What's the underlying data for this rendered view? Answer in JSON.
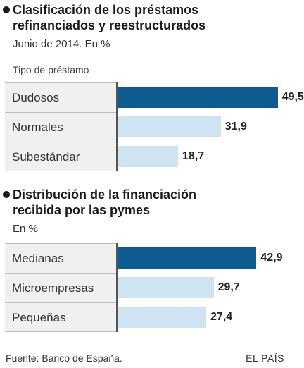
{
  "colors": {
    "highlight": "#0d5b91",
    "normal": "#cfe4f2"
  },
  "chart_data": [
    {
      "type": "bar",
      "title": "Clasificación de los préstamos refinanciados y reestructurados",
      "subtitle": "Junio de 2014. En %",
      "category_header": "Tipo de préstamo",
      "categories": [
        "Dudosos",
        "Normales",
        "Subestándar"
      ],
      "values": [
        49.5,
        31.9,
        18.7
      ],
      "value_labels": [
        "49,5",
        "31,9",
        "18,7"
      ],
      "highlight": [
        true,
        false,
        false
      ],
      "xlim": [
        0,
        50
      ]
    },
    {
      "type": "bar",
      "title": "Distribución de la financiación recibida por las pymes",
      "subtitle": "En %",
      "categories": [
        "Medianas",
        "Microempresas",
        "Pequeñas"
      ],
      "values": [
        42.9,
        29.7,
        27.4
      ],
      "value_labels": [
        "42,9",
        "29,7",
        "27,4"
      ],
      "highlight": [
        true,
        false,
        false
      ],
      "xlim": [
        0,
        50
      ]
    }
  ],
  "footer": {
    "source": "Fuente: Banco de España.",
    "brand": "EL PAÍS"
  }
}
